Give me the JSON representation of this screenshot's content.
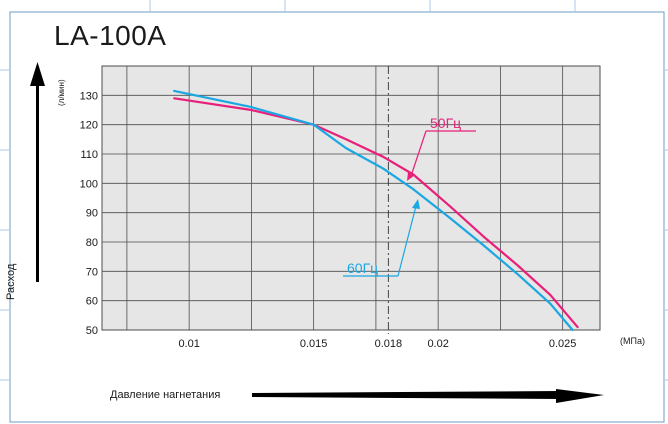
{
  "chart_data": {
    "type": "line",
    "title": "LA-100A",
    "ylabel": "Расход",
    "yunit": "(л/мин)",
    "xlabel": "Давление нагнетания",
    "xunit": "(МПа)",
    "xlim": [
      0.0065,
      0.0265
    ],
    "ylim": [
      50,
      140
    ],
    "x_ticks": [
      0.01,
      0.015,
      0.018,
      0.02,
      0.025
    ],
    "x_tick_labels": [
      "0.01",
      "0.015",
      "0.018",
      "0.02",
      "0.025"
    ],
    "y_ticks": [
      50,
      60,
      70,
      80,
      90,
      100,
      110,
      120,
      130
    ],
    "y_tick_labels": [
      "50",
      "60",
      "70",
      "80",
      "90",
      "100",
      "110",
      "120",
      "130"
    ],
    "grid": true,
    "reference_line_x": 0.018,
    "series": [
      {
        "name": "50Гц",
        "color": "#e8207a",
        "x": [
          0.0094,
          0.0125,
          0.015,
          0.0163,
          0.0178,
          0.019,
          0.0205,
          0.0218,
          0.0232,
          0.0245,
          0.0256
        ],
        "y": [
          129,
          125,
          120,
          115,
          109,
          103,
          92,
          82,
          72,
          62,
          51
        ]
      },
      {
        "name": "60Гц",
        "color": "#1aa7e2",
        "x": [
          0.0094,
          0.0125,
          0.015,
          0.0163,
          0.0178,
          0.019,
          0.0205,
          0.0218,
          0.0232,
          0.0245,
          0.0254
        ],
        "y": [
          131.5,
          126,
          120,
          112,
          105,
          98,
          88,
          79,
          69,
          59,
          50
        ]
      }
    ]
  },
  "labels": {
    "title": "LA-100A",
    "ylabel": "Расход",
    "yunit": "(л/мин)",
    "xlabel": "Давление нагнетания",
    "xunit": "(МПа)",
    "legend_50": "50Гц",
    "legend_60": "60Гц"
  },
  "colors": {
    "plot_bg": "#e6e6e6",
    "grid": "#4d4d4d",
    "frame": "#6f9bc4",
    "frame_grid": "#a9c9e6",
    "arrow": "#000000",
    "series_50": "#e8207a",
    "series_60": "#1aa7e2"
  }
}
